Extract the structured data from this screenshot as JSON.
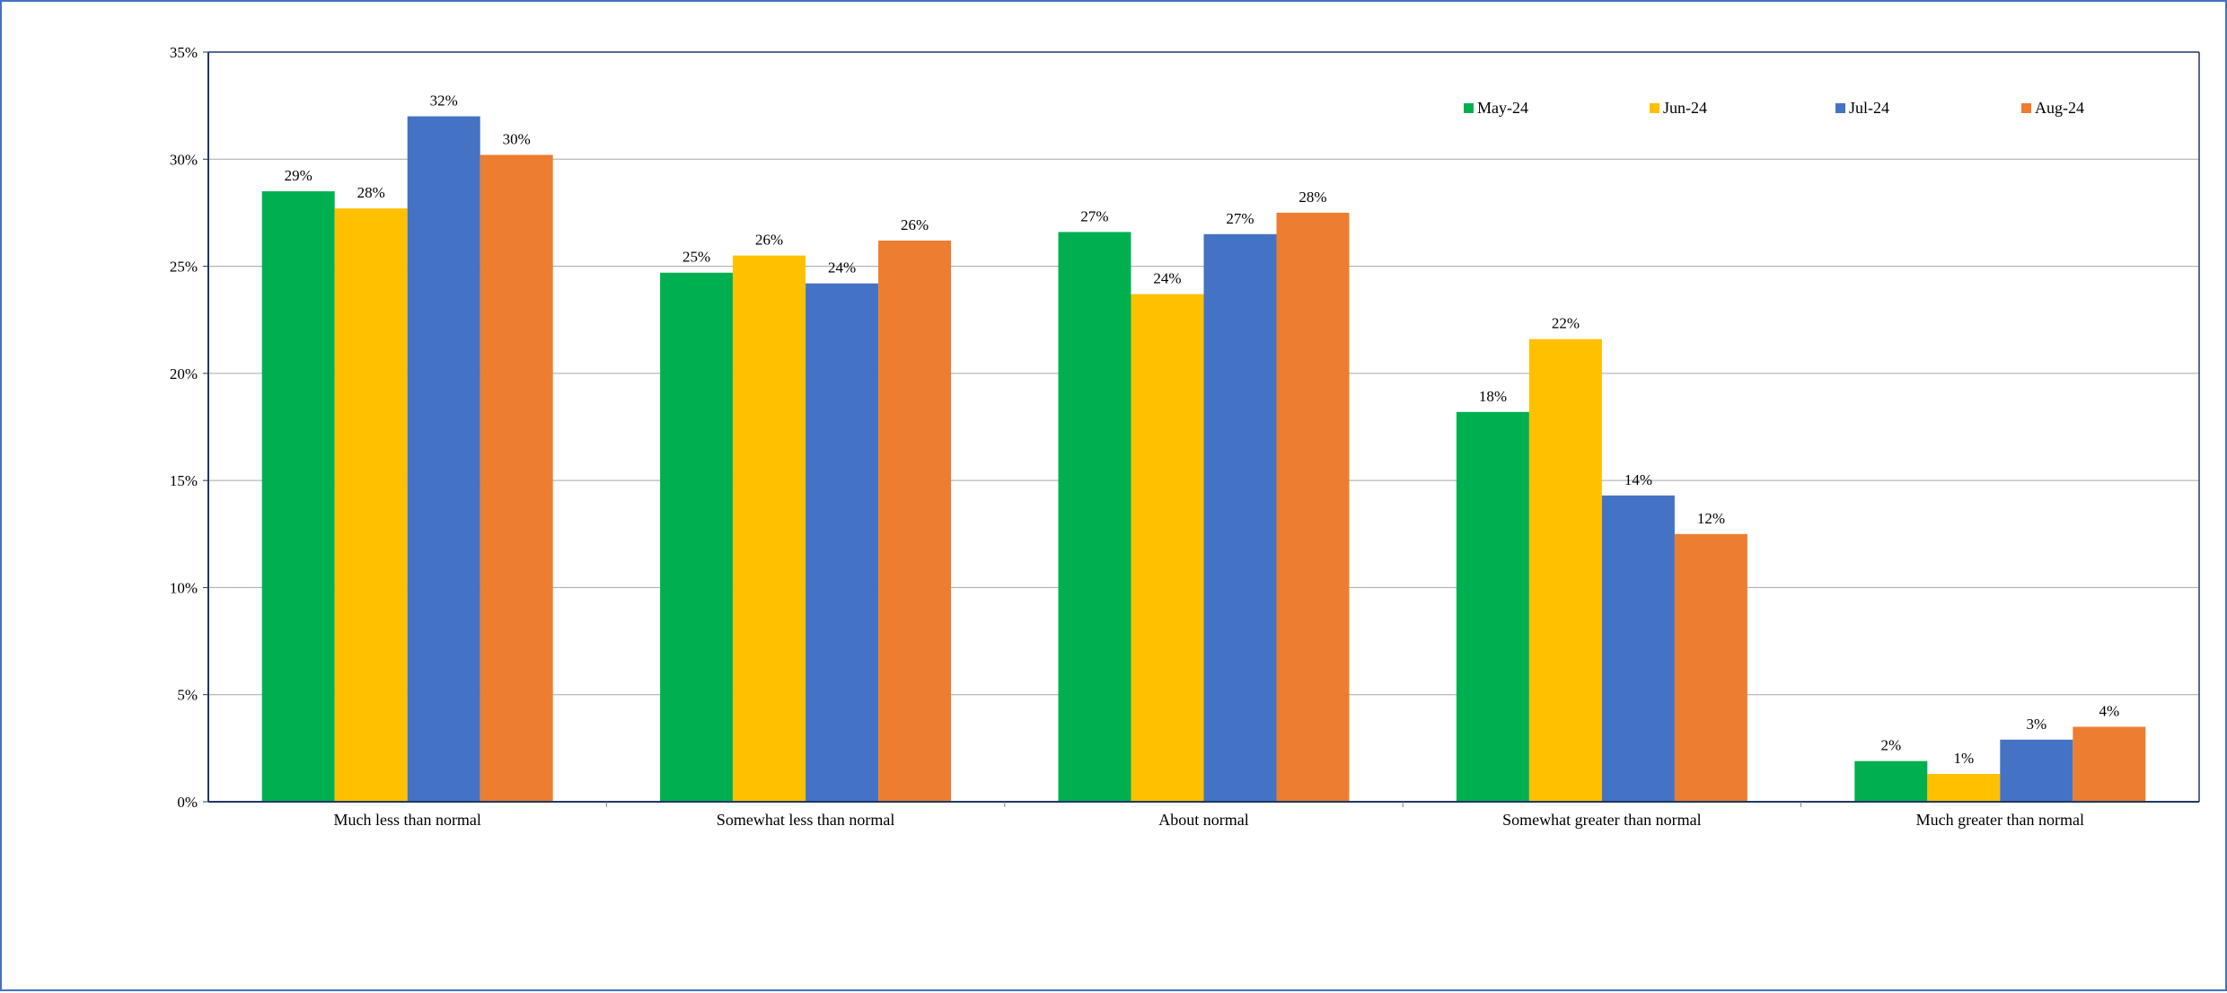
{
  "chart_data": {
    "type": "bar",
    "title": "",
    "xlabel": "",
    "ylabel": "",
    "categories": [
      "Much less than normal",
      "Somewhat less than normal",
      "About normal",
      "Somewhat greater than normal",
      "Much greater than normal"
    ],
    "series": [
      {
        "name": "May-24",
        "color": "#00b050",
        "values": [
          28.5,
          24.7,
          26.6,
          18.2,
          1.9
        ],
        "labels": [
          "29%",
          "25%",
          "27%",
          "18%",
          "2%"
        ]
      },
      {
        "name": "Jun-24",
        "color": "#ffc000",
        "values": [
          27.7,
          25.5,
          23.7,
          21.6,
          1.3
        ],
        "labels": [
          "28%",
          "26%",
          "24%",
          "22%",
          "1%"
        ]
      },
      {
        "name": "Jul-24",
        "color": "#4472c4",
        "values": [
          32.0,
          24.2,
          26.5,
          14.3,
          2.9
        ],
        "labels": [
          "32%",
          "24%",
          "27%",
          "14%",
          "3%"
        ]
      },
      {
        "name": "Aug-24",
        "color": "#ed7d31",
        "values": [
          30.2,
          26.2,
          27.5,
          12.5,
          3.5
        ],
        "labels": [
          "30%",
          "26%",
          "28%",
          "12%",
          "4%"
        ]
      }
    ],
    "ylim": [
      0,
      35
    ],
    "yticks": [
      0,
      5,
      10,
      15,
      20,
      25,
      30,
      35
    ],
    "ytick_labels": [
      "0%",
      "5%",
      "10%",
      "15%",
      "20%",
      "25%",
      "30%",
      "35%"
    ],
    "grid": true,
    "legend": "top-right"
  }
}
